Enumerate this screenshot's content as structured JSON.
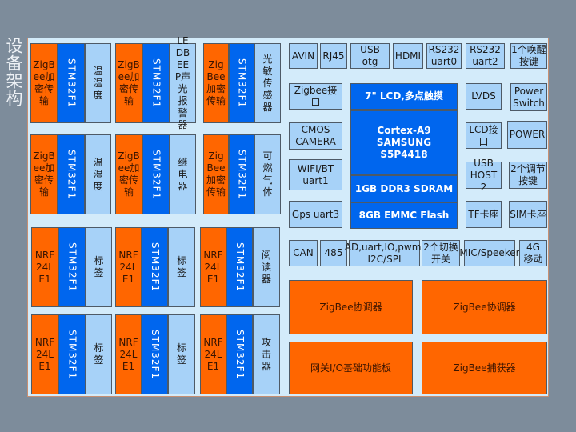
{
  "title": "设备架构",
  "colors": {
    "background": "#7d8c9b",
    "panel": "#d3ebfa",
    "orange": "#ff6600",
    "blue": "#0066ee",
    "light_blue": "#a7d2f8"
  },
  "modules": [
    {
      "radio": "ZigBee加密传输",
      "mcu": "STM32F1",
      "device": "温湿度"
    },
    {
      "radio": "ZigBee加密传输",
      "mcu": "STM32F1",
      "device": "LEDBEEP声光报警器"
    },
    {
      "radio": "ZigBee加密传输",
      "mcu": "STM32F1",
      "device": "光敏传感器"
    },
    {
      "radio": "ZigBee加密传输",
      "mcu": "STM32F1",
      "device": "温湿度"
    },
    {
      "radio": "ZigBee加密传输",
      "mcu": "STM32F1",
      "device": "继电器"
    },
    {
      "radio": "ZigBee加密传输",
      "mcu": "STM32F1",
      "device": "可燃气体"
    },
    {
      "radio": "NRF24LE1",
      "mcu": "STM32F1",
      "device": "标签"
    },
    {
      "radio": "NRF24LE1",
      "mcu": "STM32F1",
      "device": "标签"
    },
    {
      "radio": "NRF24LE1",
      "mcu": "STM32F1",
      "device": "阅读器"
    },
    {
      "radio": "NRF24LE1",
      "mcu": "STM32F1",
      "device": "标签"
    },
    {
      "radio": "NRF24LE1",
      "mcu": "STM32F1",
      "device": "标签"
    },
    {
      "radio": "NRF24LE1",
      "mcu": "STM32F1",
      "device": "攻击器"
    }
  ],
  "interfaces": [
    "AVIN",
    "RJ45",
    "USB otg",
    "HDMI",
    "RS232\nuart0",
    "RS232\nuart2",
    "1个唤醒\n按键",
    "Zigbee接口",
    "CMOS\nCAMERA",
    "WIFI/BT\nuart1",
    "Gps uart3",
    "LVDS",
    "Power\nSwitch",
    "LCD接口",
    "POWER",
    "USB\nHOST 2",
    "2个调节\n按键",
    "TF卡座",
    "SIM卡座",
    "CAN",
    "485",
    "AD,uart,IO,pwm,\nI2C/SPI",
    "2个切换\n开关",
    "MIC/Speeker",
    "4G\n移动"
  ],
  "core": [
    "7\" LCD,多点触摸",
    "Cortex-A9\nSAMSUNG\nS5P4418",
    "1GB DDR3 SDRAM",
    "8GB EMMC Flash"
  ],
  "boards": [
    "ZigBee协调器",
    "ZigBee协调器",
    "网关I/O基础功能板",
    "ZigBee捕获器"
  ]
}
